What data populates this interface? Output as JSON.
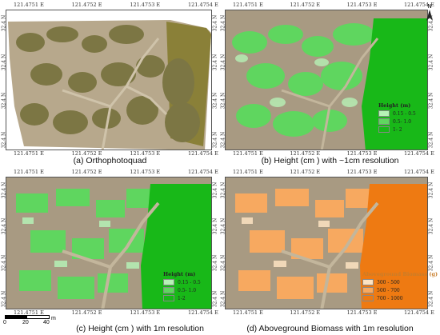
{
  "panels": [
    {
      "caption": "(a) Orthophotoquad",
      "x_ticks_top": [
        "121.4751",
        "121.4752",
        "121.4753",
        "121.4754"
      ],
      "x_ticks_bottom": [
        "121.4751",
        "121.4752",
        "121.4753",
        "121.4754"
      ],
      "y_ticks_left": [
        "32.4",
        "32.4",
        "32.4",
        "32.4"
      ],
      "y_ticks_right": [
        "32.4",
        "32.4",
        "32.4",
        "32.4"
      ],
      "legend": null
    },
    {
      "caption": "(b) Height (cm ) with ~1cm resolution",
      "x_ticks_top": [
        "121.4751",
        "121.4752",
        "121.4753",
        "121.4754"
      ],
      "x_ticks_bottom": [
        "121.4751",
        "121.4752",
        "121.4753",
        "121.4754"
      ],
      "y_ticks_left": [
        "32.4",
        "32.4",
        "32.4",
        "32.4"
      ],
      "y_ticks_right": [
        "32.4",
        "32.4",
        "32.4",
        "32.4"
      ],
      "legend": {
        "title": "Height (m)",
        "items": [
          {
            "label": "0.15 - 0.5",
            "color": "#b6f2b6"
          },
          {
            "label": "0.5- 1.0",
            "color": "#5fd65f"
          },
          {
            "label": "1- 2",
            "color": "#18b818"
          }
        ]
      }
    },
    {
      "caption": "(c) Height (cm ) with 1m resolution",
      "x_ticks_top": [
        "121.4751",
        "121.4752",
        "121.4753",
        "121.4754"
      ],
      "x_ticks_bottom": [
        "121.4751",
        "121.4752",
        "121.4753",
        "121.4754"
      ],
      "y_ticks_left": [
        "32.4",
        "32.4",
        "32.4",
        "32.4"
      ],
      "y_ticks_right": [
        "32.4",
        "32.4",
        "32.4",
        "32.4"
      ],
      "legend": {
        "title": "Height (m)",
        "items": [
          {
            "label": "0.15 - 0.5",
            "color": "#b6f2b6"
          },
          {
            "label": "0.5- 1.0",
            "color": "#5fd65f"
          },
          {
            "label": "1-2",
            "color": "#18b818"
          }
        ]
      }
    },
    {
      "caption": "(d) Aboveground Biomass with 1m resolution",
      "x_ticks_top": [
        "121.4751",
        "121.4752",
        "121.4753",
        "121.4754"
      ],
      "x_ticks_bottom": [
        "121.4751",
        "121.4752",
        "121.4753",
        "121.4754"
      ],
      "y_ticks_left": [
        "32.4",
        "32.4",
        "32.4",
        "32.4"
      ],
      "y_ticks_right": [
        "32.4",
        "32.4",
        "32.4",
        "32.4"
      ],
      "legend": {
        "title": "Aboveground Biomass (g)",
        "items": [
          {
            "label": "300 - 500",
            "color": "#fde3c2"
          },
          {
            "label": "500 - 700",
            "color": "#f7a960"
          },
          {
            "label": "700 - 1000",
            "color": "#ee7a12"
          }
        ]
      }
    }
  ],
  "scale_bar": {
    "labels": [
      "0",
      "20",
      "40"
    ],
    "unit": "m"
  },
  "north_arrow": "N",
  "colors": {
    "photo_soil": "#b7a88c",
    "photo_veg": "#7f7a45",
    "photo_dark": "#5b5830",
    "height_bg": "#a89a82",
    "height_green": "#18b818",
    "biomass_orange": "#ee7a12"
  }
}
